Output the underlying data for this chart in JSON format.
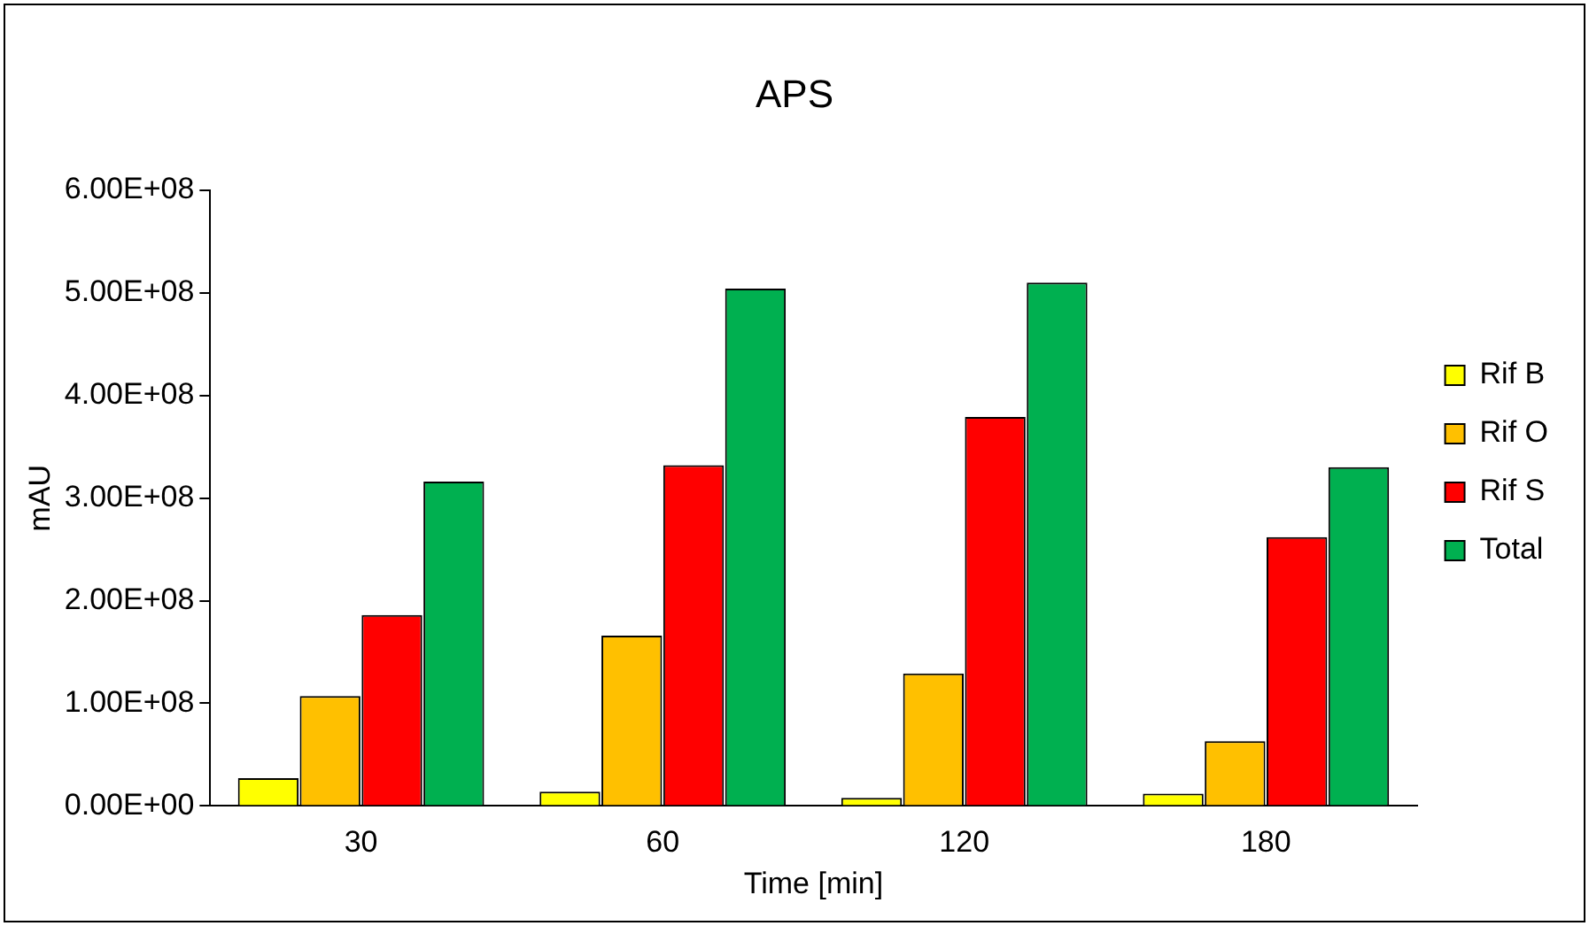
{
  "chart_data": {
    "type": "bar",
    "title": "APS",
    "xlabel": "Time [min]",
    "ylabel": "mAU",
    "categories": [
      "30",
      "60",
      "120",
      "180"
    ],
    "series": [
      {
        "name": "Rif B",
        "color": "#ffff00",
        "values": [
          27000000,
          14000000,
          8000000,
          12000000
        ]
      },
      {
        "name": "Rif O",
        "color": "#ffc000",
        "values": [
          107000000,
          166000000,
          129000000,
          63000000
        ]
      },
      {
        "name": "Rif S",
        "color": "#ff0000",
        "values": [
          186000000,
          332000000,
          379000000,
          262000000
        ]
      },
      {
        "name": "Total",
        "color": "#00b050",
        "values": [
          316000000,
          504000000,
          510000000,
          330000000
        ]
      }
    ],
    "ylim": [
      0,
      600000000
    ],
    "yticks": [
      {
        "value": 0,
        "label": "0.00E+00"
      },
      {
        "value": 100000000,
        "label": "1.00E+08"
      },
      {
        "value": 200000000,
        "label": "2.00E+08"
      },
      {
        "value": 300000000,
        "label": "3.00E+08"
      },
      {
        "value": 400000000,
        "label": "4.00E+08"
      },
      {
        "value": 500000000,
        "label": "5.00E+08"
      },
      {
        "value": 600000000,
        "label": "6.00E+08"
      }
    ],
    "grid": false,
    "legend": "right"
  }
}
